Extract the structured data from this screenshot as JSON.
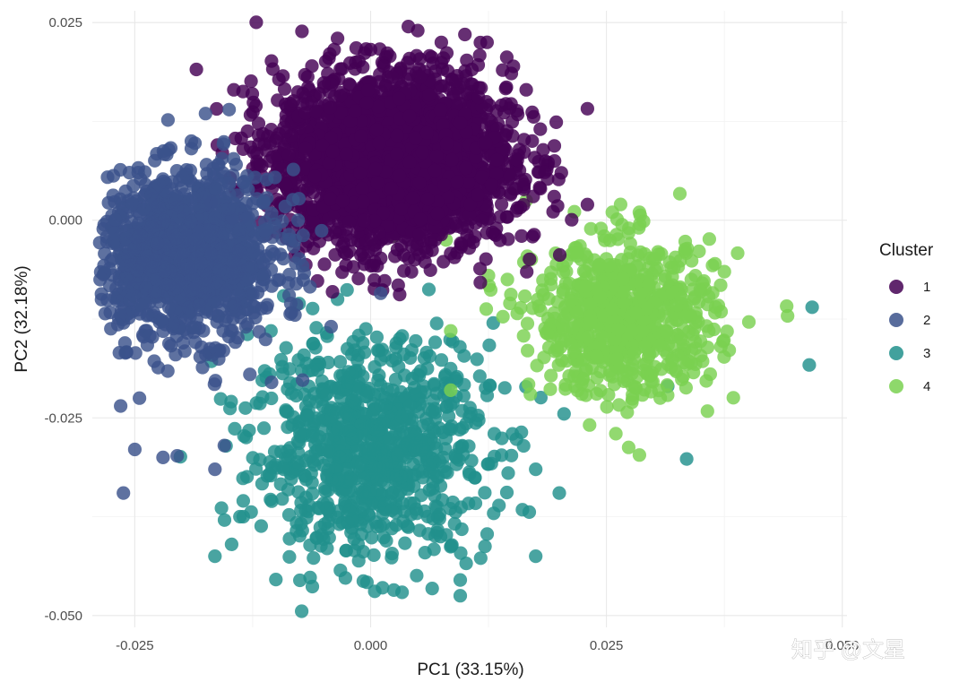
{
  "chart_data": {
    "type": "scatter",
    "title": "",
    "xlabel": "PC1 (33.15%)",
    "ylabel": "PC2 (32.18%)",
    "xlim": [
      -0.0295,
      0.0505
    ],
    "ylim": [
      -0.0515,
      0.0265
    ],
    "x_ticks": [
      -0.025,
      0.0,
      0.025,
      0.05
    ],
    "x_tick_labels": [
      "-0.025",
      "0.000",
      "0.025",
      "0.050"
    ],
    "y_ticks": [
      -0.05,
      -0.025,
      0.0,
      0.025
    ],
    "y_tick_labels": [
      "-0.050",
      "-0.025",
      "0.000",
      "0.025"
    ],
    "grid": true,
    "legend_title": "Cluster",
    "legend_position": "right",
    "series": [
      {
        "name": "1",
        "color": "#440154",
        "center": [
          0.0025,
          0.0075
        ],
        "spread": [
          0.0062,
          0.0055
        ],
        "count": 2600,
        "points": [
          [
            -0.0035,
            0.023
          ],
          [
            0.005,
            0.024
          ],
          [
            0.01,
            0.0235
          ],
          [
            0.014,
            0.019
          ],
          [
            0.0165,
            0.0165
          ],
          [
            0.0195,
            0.0075
          ],
          [
            -0.0145,
            0.0165
          ],
          [
            -0.0135,
            0.009
          ],
          [
            -0.009,
            0.0045
          ],
          [
            0.016,
            -0.002
          ],
          [
            0.004,
            0.0245
          ],
          [
            0.0075,
            0.0225
          ],
          [
            -0.0065,
            0.0165
          ],
          [
            0.018,
            0.004
          ]
        ]
      },
      {
        "name": "2",
        "color": "#3b528b",
        "center": [
          -0.0195,
          -0.0045
        ],
        "spread": [
          0.0048,
          0.0052
        ],
        "count": 1300,
        "points": [
          [
            -0.0262,
            -0.0345
          ],
          [
            -0.025,
            -0.029
          ],
          [
            -0.022,
            -0.03
          ],
          [
            -0.0205,
            -0.0298
          ],
          [
            -0.0165,
            -0.0315
          ],
          [
            -0.0155,
            -0.0285
          ],
          [
            -0.0128,
            -0.0195
          ],
          [
            -0.0105,
            -0.0205
          ],
          [
            -0.0245,
            -0.0225
          ],
          [
            -0.0265,
            -0.0235
          ],
          [
            -0.0265,
            -0.012
          ],
          [
            -0.019,
            0.01
          ],
          [
            -0.0175,
            0.0135
          ],
          [
            -0.015,
            0.014
          ]
        ]
      },
      {
        "name": "3",
        "color": "#21908c",
        "center": [
          0.0,
          -0.029
        ],
        "spread": [
          0.0062,
          0.0068
        ],
        "count": 900,
        "points": [
          [
            0.0468,
            -0.011
          ],
          [
            0.0465,
            -0.0183
          ],
          [
            0.0335,
            -0.0302
          ],
          [
            0.0315,
            -0.021
          ],
          [
            -0.0165,
            -0.0425
          ],
          [
            -0.0135,
            -0.0355
          ],
          [
            -0.0135,
            -0.0375
          ],
          [
            0.0095,
            -0.0455
          ],
          [
            0.0095,
            -0.0475
          ],
          [
            0.0175,
            -0.0425
          ],
          [
            0.02,
            -0.0345
          ],
          [
            0.0175,
            -0.0315
          ],
          [
            0.0205,
            -0.0245
          ],
          [
            -0.013,
            -0.009
          ],
          [
            0.009,
            -0.02
          ],
          [
            0.013,
            -0.013
          ]
        ]
      },
      {
        "name": "4",
        "color": "#7ad151",
        "center": [
          0.027,
          -0.0125
        ],
        "spread": [
          0.0048,
          0.0048
        ],
        "count": 750,
        "points": [
          [
            0.0265,
            0.002
          ],
          [
            0.0285,
            0.001
          ],
          [
            0.034,
            -0.0075
          ],
          [
            0.0365,
            -0.0055
          ],
          [
            0.0375,
            -0.0065
          ],
          [
            0.0285,
            -0.0297
          ],
          [
            0.026,
            -0.027
          ],
          [
            0.0145,
            -0.0075
          ],
          [
            0.0125,
            -0.007
          ],
          [
            0.008,
            -0.0025
          ],
          [
            0.0025,
            -0.002
          ],
          [
            0.0085,
            -0.0215
          ],
          [
            0.0165,
            0.0025
          ],
          [
            0.0085,
            -0.014
          ]
        ]
      }
    ]
  },
  "watermark": "知乎 @文星"
}
